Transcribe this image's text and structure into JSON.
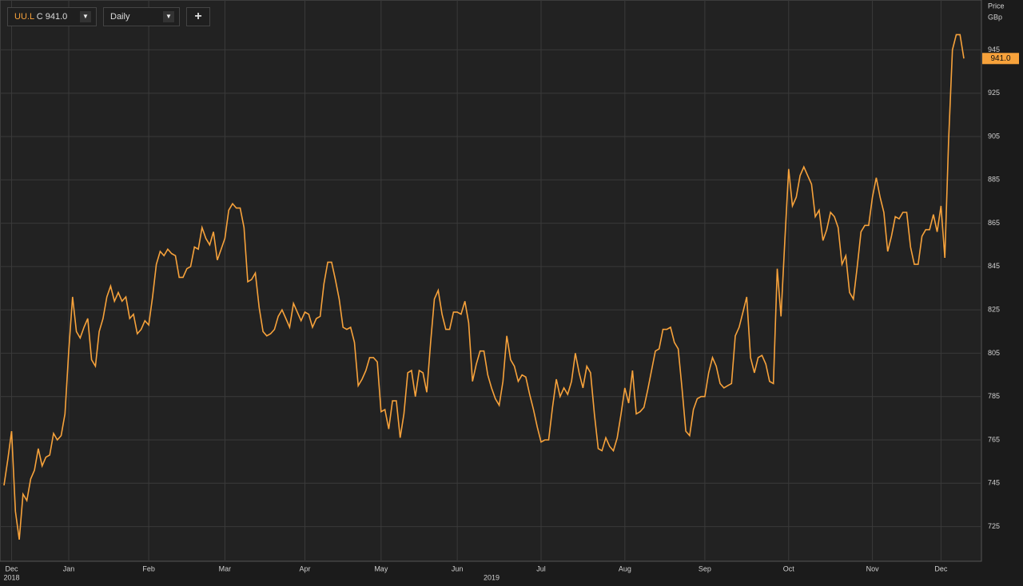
{
  "toolbar": {
    "symbol": "UU.L",
    "quote": "C 941.0",
    "interval": "Daily",
    "add": "+"
  },
  "chart_data": {
    "type": "line",
    "y_axis_title": [
      "Price",
      "GBp"
    ],
    "last_label": "941.0",
    "categories": [
      null,
      null,
      "Dec",
      null,
      null,
      null,
      null,
      null,
      null,
      null,
      null,
      null,
      null,
      null,
      null,
      null,
      null,
      "Jan",
      null,
      null,
      null,
      null,
      null,
      null,
      null,
      null,
      null,
      null,
      null,
      null,
      null,
      null,
      null,
      null,
      null,
      null,
      null,
      null,
      "Feb",
      null,
      null,
      null,
      null,
      null,
      null,
      null,
      null,
      null,
      null,
      null,
      null,
      null,
      null,
      null,
      null,
      null,
      null,
      null,
      "Mar",
      null,
      null,
      null,
      null,
      null,
      null,
      null,
      null,
      null,
      null,
      null,
      null,
      null,
      null,
      null,
      null,
      null,
      null,
      null,
      null,
      "Apr",
      null,
      null,
      null,
      null,
      null,
      null,
      null,
      null,
      null,
      null,
      null,
      null,
      null,
      null,
      null,
      null,
      null,
      null,
      null,
      "May",
      null,
      null,
      null,
      null,
      null,
      null,
      null,
      null,
      null,
      null,
      null,
      null,
      null,
      null,
      null,
      null,
      null,
      null,
      null,
      "Jun",
      null,
      null,
      null,
      null,
      null,
      null,
      null,
      null,
      null,
      null,
      null,
      null,
      null,
      null,
      null,
      null,
      null,
      null,
      null,
      null,
      null,
      "Jul",
      null,
      null,
      null,
      null,
      null,
      null,
      null,
      null,
      null,
      null,
      null,
      null,
      null,
      null,
      null,
      null,
      null,
      null,
      null,
      null,
      null,
      "Aug",
      null,
      null,
      null,
      null,
      null,
      null,
      null,
      null,
      null,
      null,
      null,
      null,
      null,
      null,
      null,
      null,
      null,
      null,
      null,
      null,
      "Sep",
      null,
      null,
      null,
      null,
      null,
      null,
      null,
      null,
      null,
      null,
      null,
      null,
      null,
      null,
      null,
      null,
      null,
      null,
      null,
      null,
      null,
      "Oct",
      null,
      null,
      null,
      null,
      null,
      null,
      null,
      null,
      null,
      null,
      null,
      null,
      null,
      null,
      null,
      null,
      null,
      null,
      null,
      null,
      null,
      "Nov",
      null,
      null,
      null,
      null,
      null,
      null,
      null,
      null,
      null,
      null,
      null,
      null,
      null,
      null,
      null,
      null,
      null,
      "Dec",
      null,
      null,
      null,
      null,
      null,
      null
    ],
    "year_labels": [
      null,
      null,
      "2018",
      null,
      null,
      null,
      null,
      null,
      null,
      null,
      null,
      null,
      null,
      null,
      null,
      null,
      null,
      null,
      null,
      null,
      null,
      null,
      null,
      null,
      null,
      null,
      null,
      null,
      null,
      null,
      null,
      null,
      null,
      null,
      null,
      null,
      null,
      null,
      null,
      null,
      null,
      null,
      null,
      null,
      null,
      null,
      null,
      null,
      null,
      null,
      null,
      null,
      null,
      null,
      null,
      null,
      null,
      null,
      null,
      null,
      null,
      null,
      null,
      null,
      null,
      null,
      null,
      null,
      null,
      null,
      null,
      null,
      null,
      null,
      null,
      null,
      null,
      null,
      null,
      null,
      null,
      null,
      null,
      null,
      null,
      null,
      null,
      null,
      null,
      null,
      null,
      null,
      null,
      null,
      null,
      null,
      null,
      null,
      null,
      null,
      null,
      null,
      null,
      null,
      null,
      null,
      null,
      null,
      null,
      null,
      null,
      null,
      null,
      null,
      null,
      null,
      null,
      null,
      null,
      null,
      null,
      null,
      null,
      null,
      null,
      null,
      null,
      null,
      "2019",
      null,
      null,
      null,
      null,
      null,
      null,
      null,
      null,
      null,
      null,
      null,
      null,
      null,
      null,
      null,
      null,
      null,
      null,
      null,
      null,
      null,
      null,
      null,
      null,
      null,
      null,
      null,
      null,
      null,
      null,
      null,
      null,
      null,
      null,
      null,
      null,
      null,
      null,
      null,
      null,
      null,
      null,
      null,
      null,
      null,
      null,
      null,
      null,
      null,
      null,
      null,
      null,
      null,
      null,
      null,
      null,
      null,
      null,
      null,
      null,
      null,
      null,
      null,
      null,
      null,
      null,
      null,
      null,
      null,
      null,
      null,
      null,
      null,
      null,
      null,
      null,
      null,
      null,
      null,
      null,
      null,
      null,
      null,
      null,
      null,
      null,
      null,
      null,
      null,
      null,
      null,
      null,
      null,
      null,
      null,
      null,
      null,
      null,
      null,
      null,
      null,
      null,
      null,
      null,
      null,
      null,
      null,
      null,
      null,
      null,
      null,
      null,
      null,
      null,
      null,
      null,
      null,
      null,
      null,
      null,
      null,
      null,
      null,
      null
    ],
    "series": [
      {
        "name": "UU.L",
        "color": "#f7a23b",
        "values": [
          744,
          756,
          769,
          732,
          719,
          740,
          737,
          747,
          751,
          761,
          753,
          757,
          758,
          768,
          765,
          767,
          777,
          806,
          831,
          815,
          812,
          817,
          821,
          802,
          799,
          815,
          821,
          831,
          836,
          829,
          833,
          829,
          831,
          821,
          823,
          814,
          816,
          820,
          818,
          831,
          846,
          852,
          850,
          853,
          851,
          850,
          840,
          840,
          844,
          845,
          854,
          853,
          863,
          858,
          855,
          861,
          848,
          853,
          858,
          871,
          874,
          872,
          872,
          863,
          838,
          839,
          842,
          826,
          815,
          813,
          814,
          816,
          822,
          825,
          821,
          817,
          828,
          824,
          820,
          824,
          823,
          817,
          821,
          822,
          837,
          847,
          847,
          839,
          830,
          817,
          816,
          817,
          810,
          790,
          793,
          797,
          803,
          803,
          801,
          778,
          779,
          770,
          783,
          783,
          766,
          777,
          796,
          797,
          785,
          797,
          796,
          787,
          810,
          830,
          834,
          823,
          816,
          816,
          824,
          824,
          823,
          829,
          819,
          792,
          800,
          806,
          806,
          795,
          789,
          784,
          781,
          792,
          813,
          802,
          799,
          792,
          795,
          794,
          786,
          779,
          771,
          764,
          765,
          765,
          780,
          793,
          785,
          789,
          786,
          792,
          805,
          796,
          789,
          799,
          796,
          777,
          761,
          760,
          766,
          762,
          760,
          766,
          777,
          789,
          782,
          797,
          777,
          778,
          780,
          788,
          797,
          806,
          807,
          816,
          816,
          817,
          810,
          807,
          789,
          769,
          767,
          779,
          784,
          785,
          785,
          796,
          803,
          799,
          791,
          789,
          790,
          791,
          813,
          817,
          824,
          831,
          803,
          796,
          803,
          804,
          800,
          792,
          791,
          844,
          822,
          857,
          890,
          873,
          877,
          887,
          891,
          887,
          883,
          868,
          871,
          857,
          862,
          870,
          868,
          863,
          846,
          850,
          833,
          830,
          845,
          861,
          864,
          864,
          877,
          886,
          877,
          870,
          852,
          859,
          868,
          867,
          870,
          870,
          854,
          846,
          846,
          859,
          862,
          862,
          869,
          861,
          873,
          849,
          903,
          945,
          952,
          952,
          941
        ]
      }
    ],
    "ylim": [
      709,
      968
    ],
    "yticks": [
      725,
      745,
      765,
      785,
      805,
      825,
      845,
      865,
      885,
      905,
      925,
      945
    ],
    "grid": true
  }
}
